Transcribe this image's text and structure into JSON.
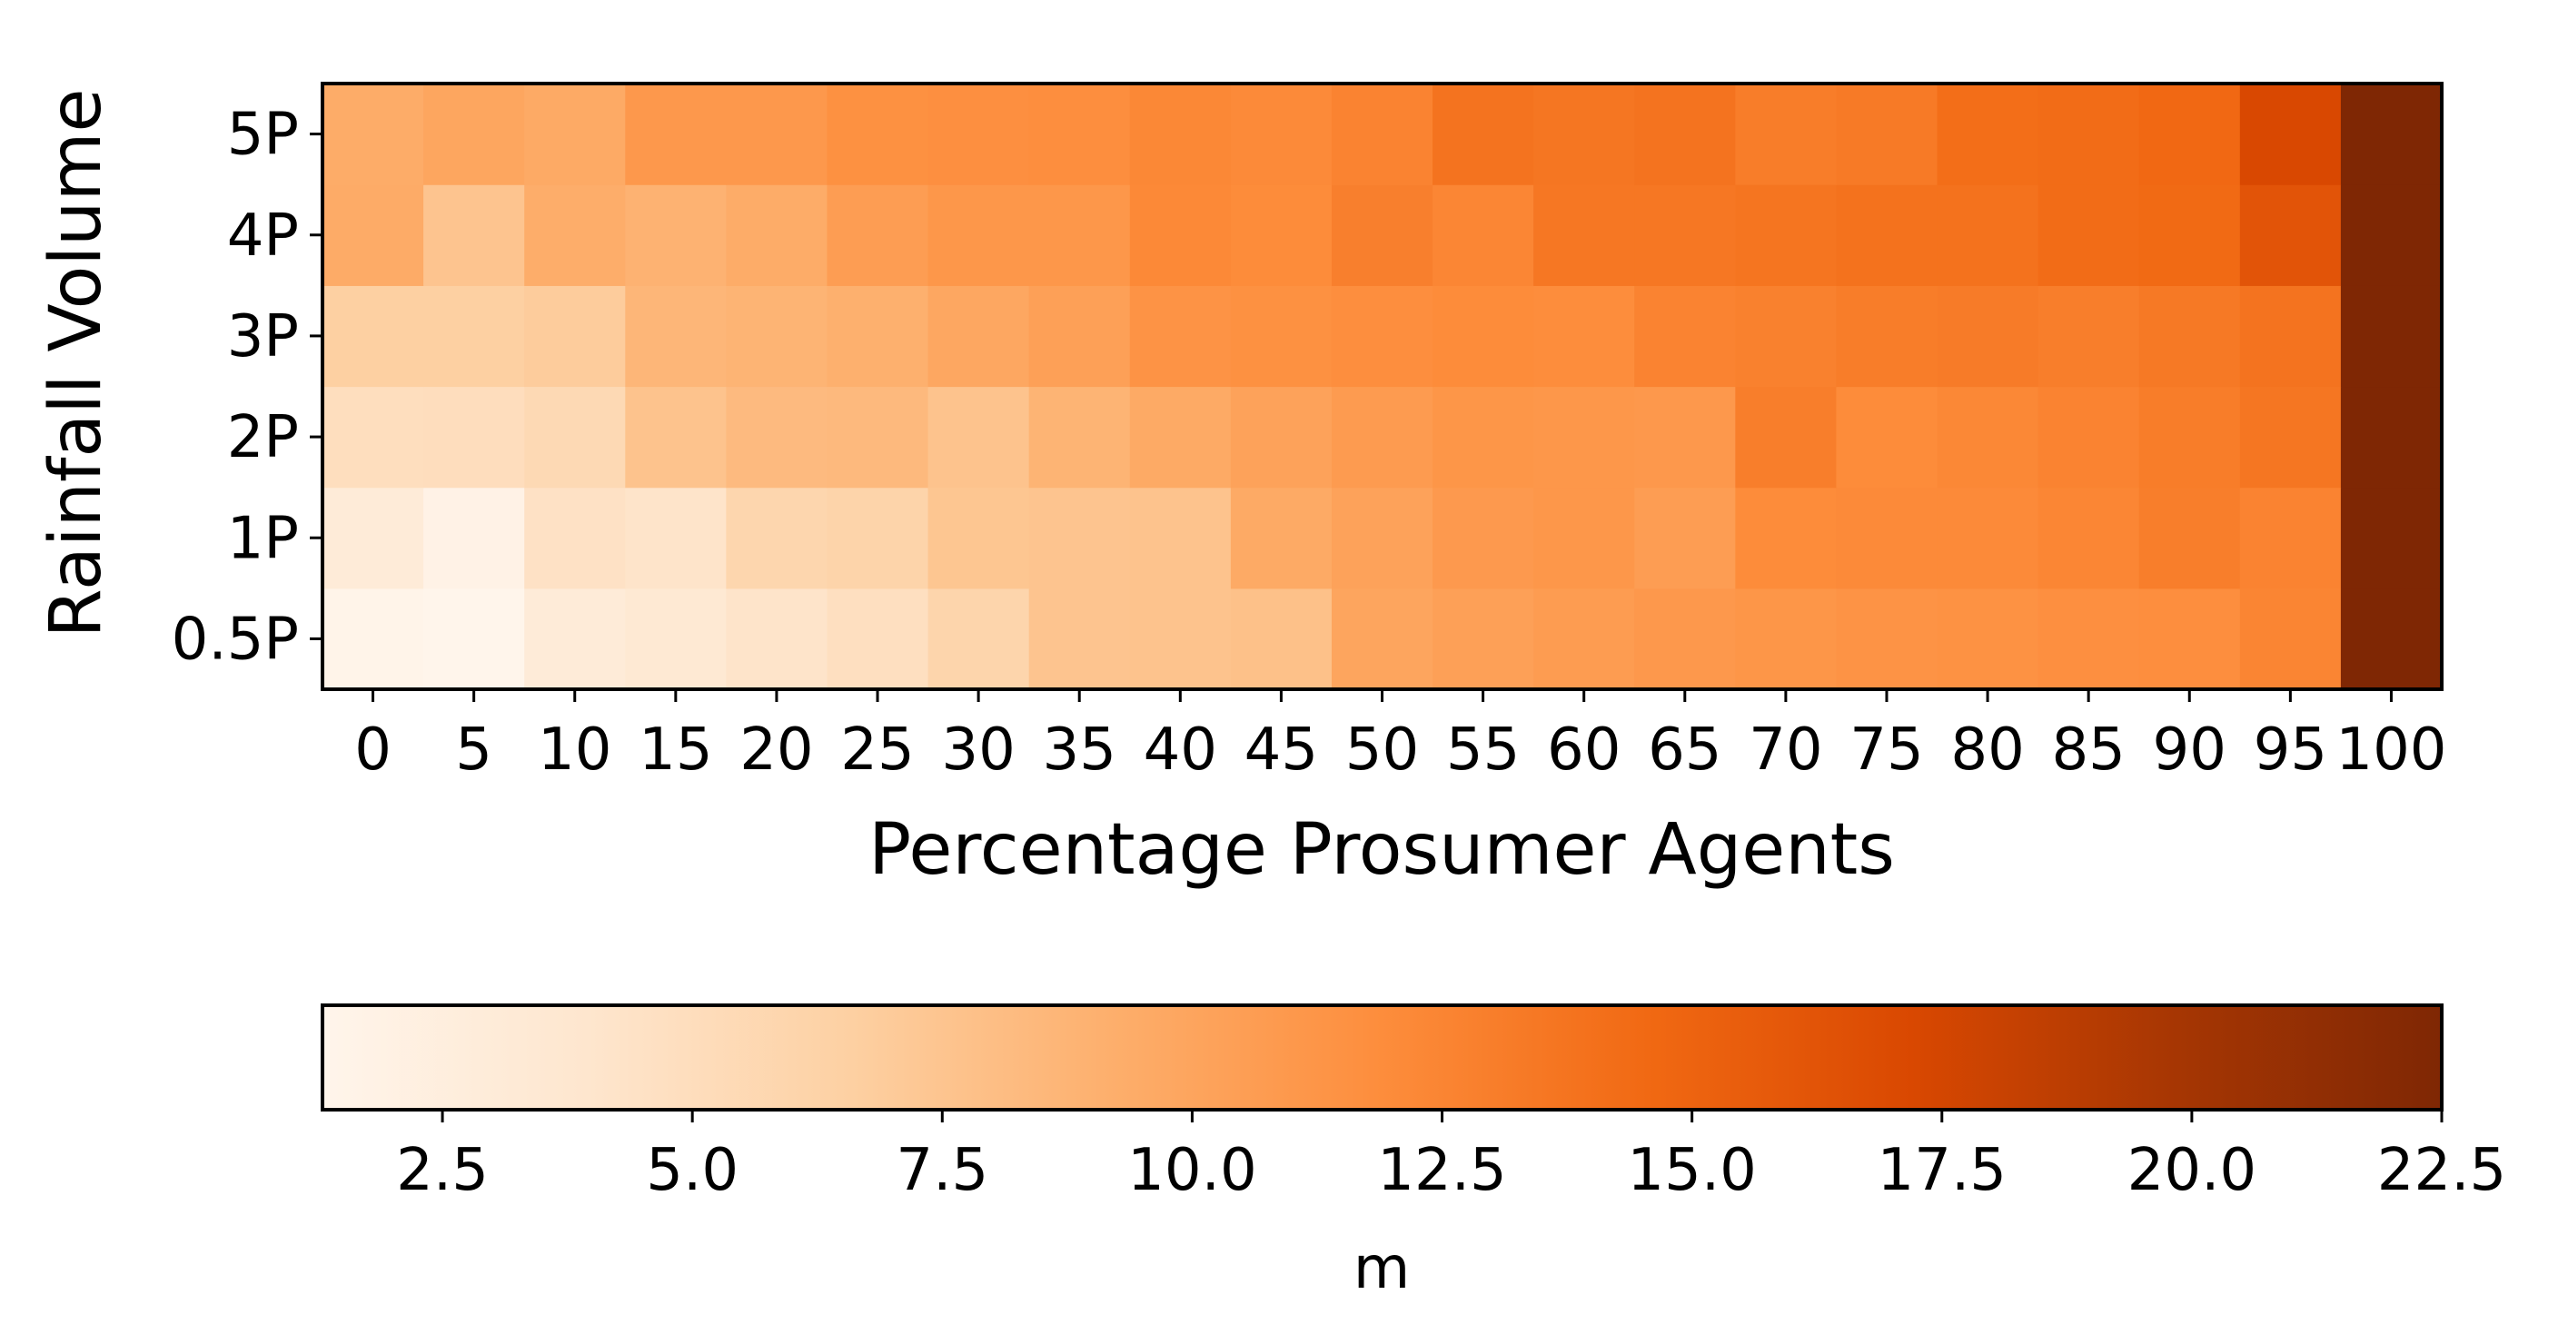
{
  "chart_data": {
    "type": "heatmap",
    "colormap": "Oranges",
    "colors": {
      "low": "#fff5eb",
      "mid": "#fd8d3c",
      "high": "#7f2704",
      "frame": "#000000"
    },
    "xlabel": "Percentage Prosumer Agents",
    "ylabel": "Rainfall Volume",
    "x_categories": [
      "0",
      "5",
      "10",
      "15",
      "20",
      "25",
      "30",
      "35",
      "40",
      "45",
      "50",
      "55",
      "60",
      "65",
      "70",
      "75",
      "80",
      "85",
      "90",
      "95",
      "100"
    ],
    "y_categories": [
      "0.5P",
      "1P",
      "2P",
      "3P",
      "4P",
      "5P"
    ],
    "values": [
      [
        1.5,
        1.3,
        3.0,
        3.5,
        4.2,
        4.8,
        6.0,
        7.5,
        7.6,
        7.8,
        10.0,
        10.4,
        10.7,
        11.0,
        11.2,
        11.4,
        11.5,
        11.7,
        11.8,
        12.5,
        22.5
      ],
      [
        3.0,
        1.8,
        4.5,
        4.2,
        5.9,
        6.1,
        7.4,
        7.5,
        7.6,
        9.6,
        10.2,
        10.9,
        11.1,
        10.6,
        12.0,
        12.1,
        12.1,
        12.4,
        13.0,
        12.6,
        22.5
      ],
      [
        4.9,
        5.0,
        5.5,
        7.6,
        8.3,
        8.4,
        7.6,
        8.8,
        9.6,
        10.2,
        10.8,
        11.2,
        11.1,
        11.0,
        13.0,
        12.0,
        12.3,
        12.6,
        13.1,
        13.6,
        22.5
      ],
      [
        6.6,
        6.6,
        6.9,
        8.6,
        8.8,
        9.1,
        9.8,
        10.4,
        11.4,
        11.6,
        11.8,
        12.0,
        11.9,
        12.6,
        12.8,
        13.1,
        13.2,
        13.0,
        13.4,
        13.8,
        22.5
      ],
      [
        9.5,
        7.5,
        9.3,
        8.9,
        9.4,
        10.6,
        11.1,
        11.1,
        12.2,
        12.0,
        12.9,
        12.4,
        13.5,
        13.5,
        13.7,
        13.9,
        13.9,
        14.3,
        14.5,
        16.2,
        22.5
      ],
      [
        9.4,
        9.9,
        9.6,
        11.0,
        11.0,
        11.6,
        11.7,
        11.8,
        12.3,
        12.1,
        12.6,
        13.8,
        13.6,
        13.8,
        13.1,
        13.3,
        14.2,
        14.3,
        14.6,
        17.2,
        22.5
      ]
    ],
    "colorbar": {
      "range": [
        1.3,
        22.5
      ],
      "ticks": [
        2.5,
        5.0,
        7.5,
        10.0,
        12.5,
        15.0,
        17.5,
        20.0,
        22.5
      ],
      "tick_labels": [
        "2.5",
        "5.0",
        "7.5",
        "10.0",
        "12.5",
        "15.0",
        "17.5",
        "20.0",
        "22.5"
      ],
      "label": "m"
    }
  }
}
